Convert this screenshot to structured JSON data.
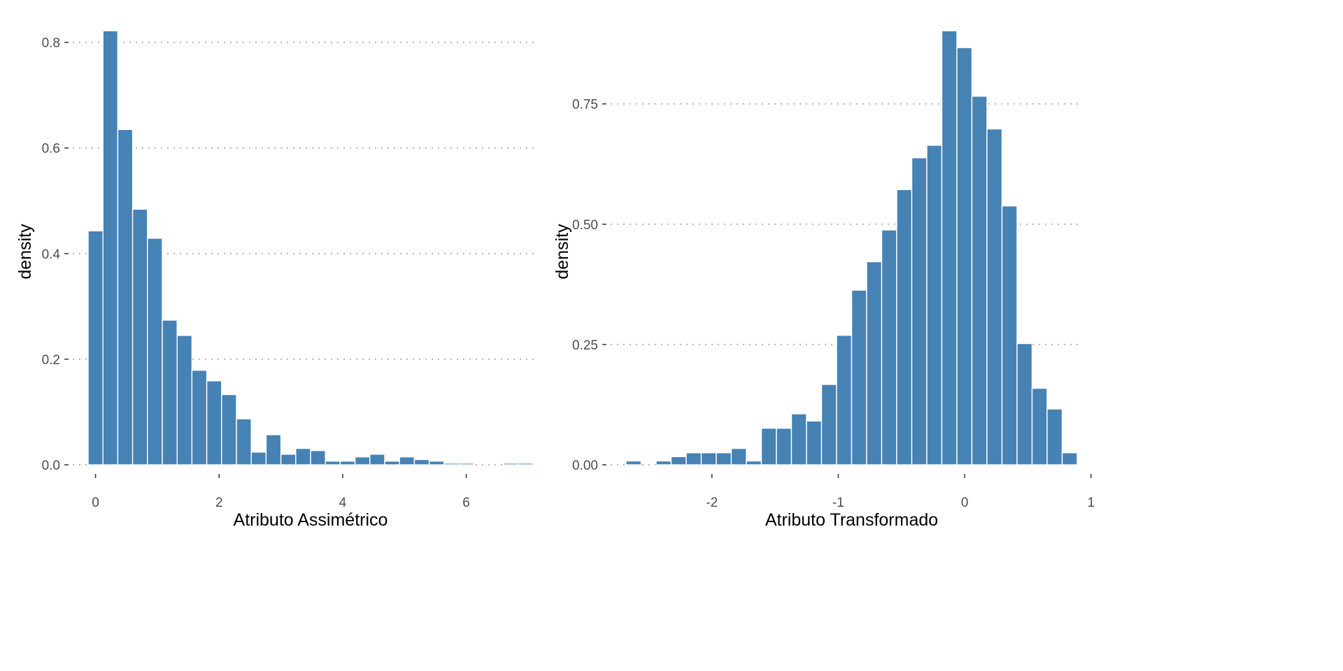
{
  "colors": {
    "bar_fill": "#4682B4",
    "bar_stroke": "#ffffff",
    "grid": "#b3b3b3",
    "tick": "#333333"
  },
  "chart_data": [
    {
      "type": "bar",
      "xlabel": "Atributo Assimétrico",
      "ylabel": "density",
      "grid": "horizontal dotted",
      "bin_width": 0.24,
      "bin_centers": [
        0.0,
        0.24,
        0.48,
        0.72,
        0.96,
        1.2,
        1.44,
        1.68,
        1.92,
        2.16,
        2.4,
        2.64,
        2.88,
        3.12,
        3.36,
        3.6,
        3.84,
        4.08,
        4.32,
        4.56,
        4.8,
        5.04,
        5.28,
        5.52,
        5.76,
        6.0,
        6.24,
        6.48,
        6.72,
        6.96
      ],
      "values": [
        0.443,
        0.822,
        0.635,
        0.484,
        0.429,
        0.274,
        0.245,
        0.179,
        0.159,
        0.133,
        0.087,
        0.024,
        0.057,
        0.02,
        0.031,
        0.027,
        0.007,
        0.007,
        0.015,
        0.02,
        0.007,
        0.015,
        0.01,
        0.007,
        0.003,
        0.003,
        0.0,
        0.0,
        0.003,
        0.003
      ],
      "xlim": [
        -0.12,
        7.08
      ],
      "ylim": [
        0,
        0.822
      ],
      "x_ticks": [
        0,
        2,
        4,
        6
      ],
      "x_tick_labels": [
        "0",
        "2",
        "4",
        "6"
      ],
      "y_ticks": [
        0,
        0.2,
        0.4,
        0.6,
        0.8
      ],
      "y_tick_labels": [
        "0.0",
        "0.2",
        "0.4",
        "0.6",
        "0.8"
      ]
    },
    {
      "type": "bar",
      "xlabel": "Atributo Transformado",
      "ylabel": "density",
      "grid": "horizontal dotted",
      "bin_width": 0.119,
      "bin_centers": [
        -2.62,
        -2.501,
        -2.382,
        -2.263,
        -2.144,
        -2.025,
        -1.906,
        -1.787,
        -1.668,
        -1.549,
        -1.43,
        -1.311,
        -1.192,
        -1.073,
        -0.954,
        -0.835,
        -0.716,
        -0.597,
        -0.478,
        -0.359,
        -0.24,
        -0.121,
        -0.002,
        0.117,
        0.236,
        0.355,
        0.474,
        0.593,
        0.712,
        0.831
      ],
      "values": [
        0.008,
        0.0,
        0.008,
        0.017,
        0.025,
        0.025,
        0.025,
        0.034,
        0.008,
        0.076,
        0.076,
        0.106,
        0.091,
        0.167,
        0.269,
        0.363,
        0.422,
        0.488,
        0.572,
        0.638,
        0.664,
        0.902,
        0.867,
        0.766,
        0.698,
        0.538,
        0.252,
        0.159,
        0.116,
        0.025
      ],
      "xlim": [
        -2.6795,
        0.8905
      ],
      "ylim": [
        0,
        0.902
      ],
      "x_ticks": [
        -2,
        -1,
        0,
        1
      ],
      "x_tick_labels": [
        "-2",
        "-1",
        "0",
        "1"
      ],
      "y_ticks": [
        0,
        0.25,
        0.5,
        0.75
      ],
      "y_tick_labels": [
        "0.00",
        "0.25",
        "0.50",
        "0.75"
      ]
    }
  ]
}
